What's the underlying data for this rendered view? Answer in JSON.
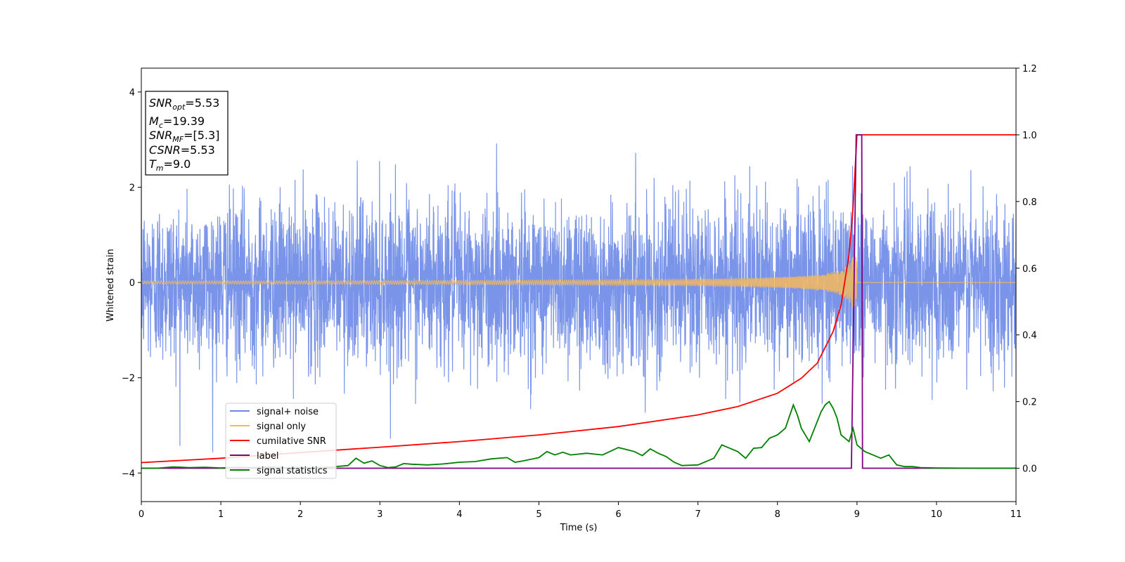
{
  "chart_data": {
    "type": "line",
    "xlabel": "Time (s)",
    "ylabel": "Whitened strain",
    "xlim": [
      0,
      11
    ],
    "ylim": [
      -4.6,
      4.5
    ],
    "y2lim": [
      -0.1,
      1.2
    ],
    "xticks": [
      0,
      1,
      2,
      3,
      4,
      5,
      6,
      7,
      8,
      9,
      10,
      11
    ],
    "yticks": [
      4,
      2,
      0,
      -2,
      -4
    ],
    "y2ticks": [
      1.2,
      1.0,
      0.8,
      0.6,
      0.4,
      0.2,
      0.0
    ],
    "grid": false,
    "legend_position": "lower-left",
    "info_box": {
      "snr_opt": {
        "sym": "SNR",
        "sub": "opt",
        "value": "=5.53"
      },
      "mc": {
        "sym": "M",
        "sub": "c",
        "value": "=19.39"
      },
      "snr_mf": {
        "sym": "SNR",
        "sub": "MF",
        "value": "=[5.3]"
      },
      "csnr": {
        "sym": "CSNR",
        "sub": "",
        "value": "=5.53"
      },
      "tm": {
        "sym": "T",
        "sub": "m",
        "value": "=9.0"
      }
    },
    "series": [
      {
        "name": "signal+ noise",
        "color": "#6a88e6",
        "axis": "left",
        "description_type": "noise",
        "noise_std": 0.85,
        "x_range": [
          0,
          11
        ],
        "samples": 4400
      },
      {
        "name": "signal only",
        "color": "#f5b85c",
        "axis": "left",
        "description_type": "chirp",
        "merger_time": 9.0,
        "peak_amplitude": 0.55,
        "base_amplitude": 0.03
      },
      {
        "name": "cumilative SNR",
        "color": "#ff0000",
        "axis": "right",
        "x": [
          0,
          1,
          2,
          3,
          4,
          5,
          6,
          7,
          7.5,
          8,
          8.3,
          8.5,
          8.7,
          8.8,
          8.9,
          8.95,
          9.0,
          9.05,
          11
        ],
        "y": [
          0.017,
          0.03,
          0.047,
          0.063,
          0.08,
          0.1,
          0.125,
          0.16,
          0.185,
          0.225,
          0.27,
          0.315,
          0.41,
          0.49,
          0.64,
          0.78,
          1.0,
          1.0,
          1.0
        ]
      },
      {
        "name": "label",
        "color": "#800080",
        "axis": "right",
        "x": [
          0,
          8.93,
          8.99,
          9.06,
          9.07,
          11
        ],
        "y": [
          0.0,
          0.0,
          1.0,
          1.0,
          0.0,
          0.0
        ]
      },
      {
        "name": "signal statistics",
        "color": "#008000",
        "axis": "right",
        "x": [
          0,
          0.2,
          0.4,
          0.6,
          0.8,
          1.0,
          1.2,
          1.4,
          1.6,
          1.8,
          2.0,
          2.2,
          2.4,
          2.6,
          2.7,
          2.8,
          2.9,
          3.0,
          3.1,
          3.2,
          3.3,
          3.4,
          3.6,
          3.8,
          4.0,
          4.2,
          4.4,
          4.6,
          4.7,
          4.8,
          5.0,
          5.1,
          5.2,
          5.3,
          5.4,
          5.6,
          5.8,
          6.0,
          6.2,
          6.3,
          6.4,
          6.5,
          6.6,
          6.7,
          6.8,
          7.0,
          7.2,
          7.3,
          7.4,
          7.5,
          7.6,
          7.7,
          7.8,
          7.9,
          8.0,
          8.1,
          8.2,
          8.25,
          8.3,
          8.4,
          8.5,
          8.55,
          8.6,
          8.65,
          8.7,
          8.75,
          8.8,
          8.9,
          8.95,
          9.0,
          9.1,
          9.2,
          9.3,
          9.4,
          9.5,
          9.6,
          9.7,
          9.8,
          10.0,
          10.5,
          11.0
        ],
        "y": [
          0.0,
          0.0,
          0.004,
          0.002,
          0.003,
          0.001,
          0.003,
          0.002,
          0.004,
          0.002,
          0.003,
          0.002,
          0.004,
          0.008,
          0.03,
          0.015,
          0.022,
          0.008,
          0.002,
          0.004,
          0.014,
          0.012,
          0.01,
          0.013,
          0.018,
          0.02,
          0.028,
          0.032,
          0.018,
          0.022,
          0.032,
          0.05,
          0.04,
          0.048,
          0.04,
          0.045,
          0.04,
          0.062,
          0.05,
          0.038,
          0.058,
          0.045,
          0.035,
          0.018,
          0.008,
          0.01,
          0.03,
          0.07,
          0.06,
          0.05,
          0.03,
          0.06,
          0.062,
          0.09,
          0.1,
          0.12,
          0.19,
          0.16,
          0.12,
          0.08,
          0.14,
          0.17,
          0.19,
          0.2,
          0.18,
          0.15,
          0.1,
          0.08,
          0.12,
          0.07,
          0.05,
          0.04,
          0.03,
          0.04,
          0.01,
          0.005,
          0.005,
          0.002,
          0.001,
          0.0,
          0.0
        ]
      }
    ]
  }
}
